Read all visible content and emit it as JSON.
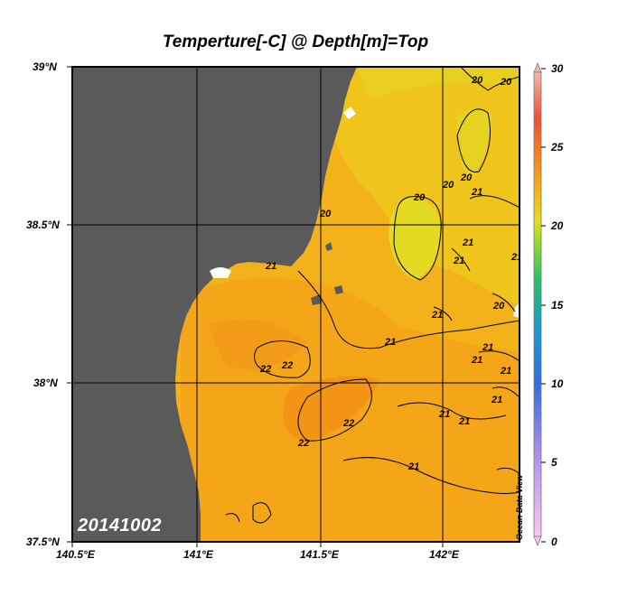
{
  "title": "Temperture[-C] @ Depth[m]=Top",
  "date_stamp": "20141002",
  "watermark": "Ocean Data View",
  "latitude_labels": [
    "39°N",
    "38.5°N",
    "38°N",
    "37.5°N"
  ],
  "longitude_labels": [
    "140.5°E",
    "141°E",
    "141.5°E",
    "142°E"
  ],
  "colorbar_labels": [
    "30",
    "25",
    "20",
    "15",
    "10",
    "5",
    "0"
  ],
  "contour_labels": [
    "20",
    "20",
    "20",
    "20",
    "20",
    "20",
    "21",
    "21",
    "21",
    "21",
    "21",
    "21",
    "21",
    "21",
    "21",
    "21",
    "21",
    "21",
    "21",
    "21",
    "22",
    "22",
    "22",
    "22",
    "20"
  ],
  "colors": {
    "land": "#5a5a5a",
    "ocean_warm": "#f6a417",
    "ocean_mid": "#f4b91a",
    "ocean_cool": "#ecd01a",
    "ocean_coolest": "#e2dc22",
    "grid": "#000000"
  }
}
